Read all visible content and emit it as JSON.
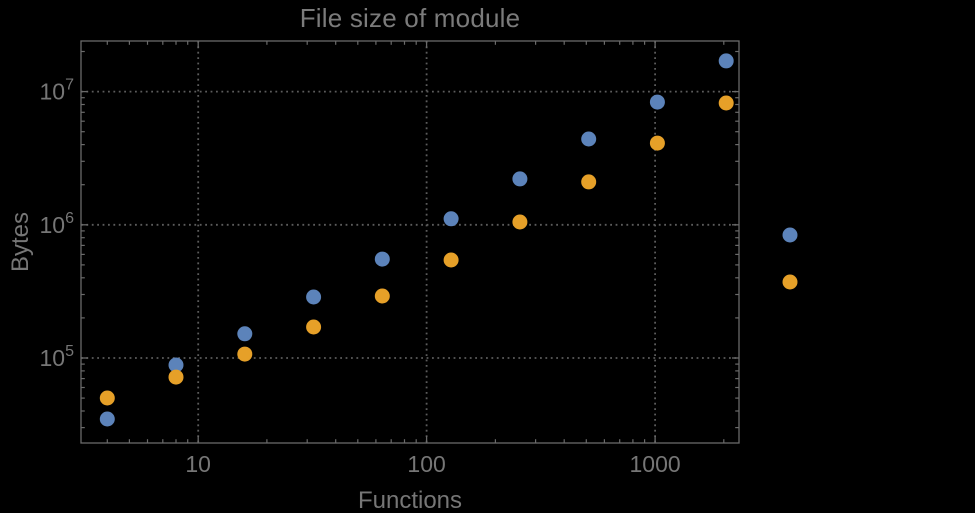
{
  "chart_data": {
    "type": "scatter",
    "title": "File size of module",
    "xlabel": "Functions",
    "ylabel": "Bytes",
    "xscale": "log",
    "yscale": "log",
    "xlim": [
      3.07,
      2330
    ],
    "ylim": [
      23000,
      24000000
    ],
    "x_ticks": {
      "values": [
        10,
        100,
        1000
      ],
      "labels": [
        "10",
        "100",
        "1000"
      ]
    },
    "y_ticks": {
      "values": [
        100000,
        1000000,
        10000000
      ],
      "base": "10",
      "exponents": [
        "5",
        "6",
        "7"
      ]
    },
    "grid": {
      "style": "dotted",
      "color": "#5c5c5c"
    },
    "frame_color": "#6a6a6a",
    "text_color": "#767676",
    "background": "#000000",
    "marker_diameter_px": 15,
    "series": [
      {
        "name": "series-1-blue",
        "color": "#5c83ba",
        "marker": "circle",
        "x": [
          4,
          8,
          16,
          32,
          64,
          128,
          256,
          512,
          1024,
          2048
        ],
        "y": [
          34800,
          88600,
          152000,
          287000,
          553000,
          1110000,
          2210000,
          4410000,
          8350000,
          17000000
        ]
      },
      {
        "name": "series-2-orange",
        "color": "#e6a028",
        "marker": "circle",
        "x": [
          4,
          8,
          16,
          32,
          64,
          128,
          256,
          512,
          1024,
          2048
        ],
        "y": [
          50100,
          71900,
          107000,
          171000,
          292000,
          544000,
          1050000,
          2100000,
          4110000,
          8210000
        ]
      }
    ],
    "legend": {
      "position": "right-outside",
      "entries": [
        {
          "label": "",
          "color": "#5c83ba"
        },
        {
          "label": "",
          "color": "#e6a028"
        }
      ]
    }
  }
}
